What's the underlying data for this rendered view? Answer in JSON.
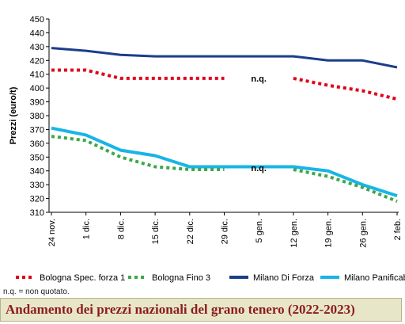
{
  "chart_data": {
    "type": "line",
    "ylabel": "Prezzi (euro/t)",
    "xlabel": "",
    "ylim": [
      310,
      450
    ],
    "yticks": [
      310,
      320,
      330,
      340,
      350,
      360,
      370,
      380,
      390,
      400,
      410,
      420,
      430,
      440,
      450
    ],
    "categories": [
      "24 nov.",
      "1 dic.",
      "8 dic.",
      "15 dic.",
      "22 dic.",
      "29 dic.",
      "5 gen.",
      "12 gen.",
      "19 gen.",
      "26 gen.",
      "2 feb."
    ],
    "grid": false,
    "legend_position": "bottom",
    "annotations": [
      {
        "text": "n.q.",
        "x": "5 gen.",
        "y": 407
      },
      {
        "text": "n.q.",
        "x": "5 gen.",
        "y": 342
      }
    ],
    "series": [
      {
        "name": "Bologna Spec. forza 1",
        "color": "#e0001b",
        "style": "dotted",
        "values": [
          413,
          413,
          407,
          407,
          407,
          407,
          null,
          407,
          402,
          398,
          392
        ]
      },
      {
        "name": "Bologna Fino 3",
        "color": "#3aa84a",
        "style": "dotted",
        "values": [
          365,
          362,
          350,
          343,
          341,
          341,
          null,
          341,
          336,
          328,
          318
        ]
      },
      {
        "name": "Milano Di Forza",
        "color": "#1a3e8c",
        "style": "solid",
        "values": [
          429,
          427,
          424,
          423,
          423,
          423,
          423,
          423,
          420,
          420,
          415
        ]
      },
      {
        "name": "Milano Panificabile",
        "color": "#19b4e6",
        "style": "solid",
        "values": [
          371,
          366,
          355,
          351,
          343,
          343,
          343,
          343,
          340,
          330,
          322
        ]
      }
    ]
  },
  "footnote": "n.q. = non quotato.",
  "footer_title": "Andamento dei prezzi nazionali del grano tenero (2022-2023)"
}
